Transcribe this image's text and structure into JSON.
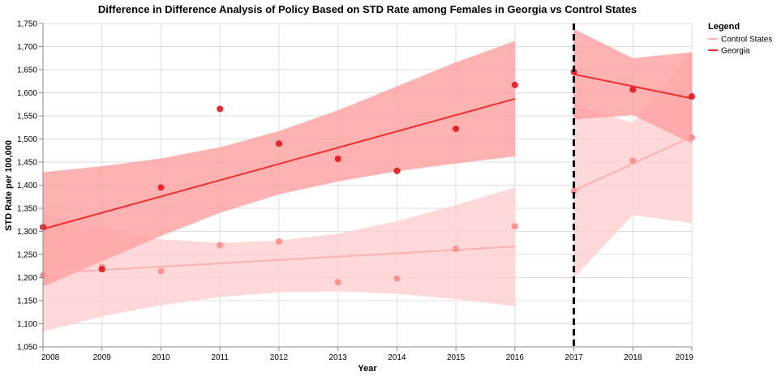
{
  "chart_data": {
    "type": "scatter",
    "title": "Difference in Difference Analysis of Policy Based on STD Rate among Females in Georgia vs Control States",
    "xlabel": "Year",
    "ylabel": "STD Rate per 100,000",
    "xlim": [
      2008,
      2019
    ],
    "ylim": [
      1050,
      1750
    ],
    "x_ticks": [
      2008,
      2009,
      2010,
      2011,
      2012,
      2013,
      2014,
      2015,
      2016,
      2017,
      2018,
      2019
    ],
    "y_ticks": [
      1050,
      1100,
      1150,
      1200,
      1250,
      1300,
      1350,
      1400,
      1450,
      1500,
      1550,
      1600,
      1650,
      1700,
      1750
    ],
    "y_tick_labels": [
      "1,050",
      "1,100",
      "1,150",
      "1,200",
      "1,250",
      "1,300",
      "1,350",
      "1,400",
      "1,450",
      "1,500",
      "1,550",
      "1,600",
      "1,650",
      "1,700",
      "1,750"
    ],
    "grid": true,
    "policy_line_x": 2017,
    "legend": {
      "title": "Legend",
      "position": "top-right",
      "entries": [
        {
          "label": "Control States",
          "color": "#ffb3b3"
        },
        {
          "label": "Georgia",
          "color": "#f03030"
        }
      ]
    },
    "series": [
      {
        "name": "Control States",
        "color": "#ff8a8a",
        "line_color": "#ffb0b0",
        "band_color": "#ffcfcf",
        "pre": {
          "x": [
            2008,
            2009,
            2010,
            2011,
            2012,
            2013,
            2014,
            2015,
            2016
          ],
          "y": [
            1205,
            1223,
            1214,
            1270,
            1278,
            1190,
            1198,
            1262,
            1311
          ],
          "fit": [
            1209,
            1267
          ],
          "band_upper": [
            1340,
            1306,
            1283,
            1275,
            1280,
            1295,
            1322,
            1357,
            1395
          ],
          "band_lower": [
            1083,
            1116,
            1140,
            1158,
            1168,
            1170,
            1165,
            1153,
            1138
          ]
        },
        "post": {
          "x": [
            2017,
            2018,
            2019
          ],
          "y": [
            1387,
            1453,
            1503
          ],
          "fit": [
            1388,
            1505
          ],
          "band_upper": [
            1575,
            1535,
            1690
          ],
          "band_lower": [
            1200,
            1335,
            1318
          ]
        }
      },
      {
        "name": "Georgia",
        "color": "#e8131b",
        "line_color": "#f03030",
        "band_color": "#ff9f9f",
        "pre": {
          "x": [
            2008,
            2009,
            2010,
            2011,
            2012,
            2013,
            2014,
            2015,
            2016
          ],
          "y": [
            1309,
            1218,
            1395,
            1565,
            1490,
            1457,
            1431,
            1522,
            1617
          ],
          "fit": [
            1305,
            1587
          ],
          "band_upper": [
            1428,
            1441,
            1458,
            1482,
            1517,
            1562,
            1614,
            1666,
            1712
          ],
          "band_lower": [
            1180,
            1235,
            1290,
            1340,
            1380,
            1408,
            1430,
            1447,
            1462
          ]
        },
        "post": {
          "x": [
            2017,
            2018,
            2019
          ],
          "y": [
            1645,
            1607,
            1592
          ],
          "fit": [
            1640,
            1588
          ],
          "band_upper": [
            1738,
            1675,
            1688
          ],
          "band_lower": [
            1542,
            1552,
            1490
          ]
        }
      }
    ]
  }
}
